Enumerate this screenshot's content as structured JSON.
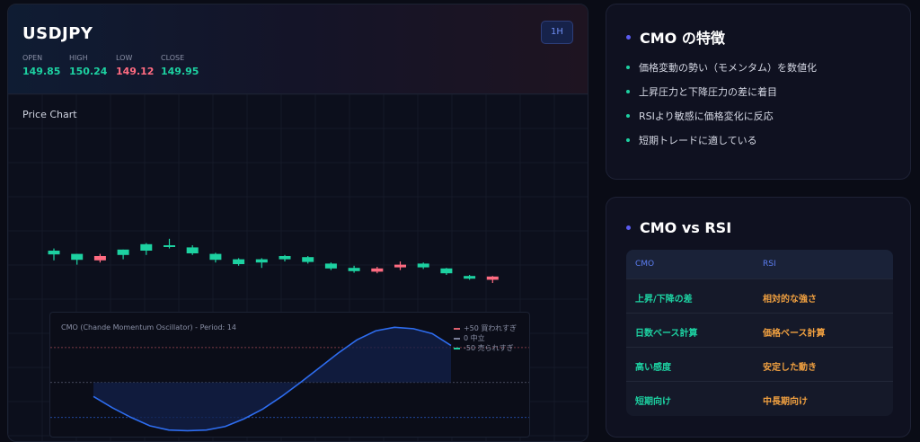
{
  "left": {
    "symbol": "USDJPY",
    "timeframe": "1H",
    "ohlc": [
      {
        "label": "OPEN",
        "value": "149.85",
        "color": "#1dd1a1"
      },
      {
        "label": "HIGH",
        "value": "150.24",
        "color": "#1dd1a1"
      },
      {
        "label": "LOW",
        "value": "149.12",
        "color": "#ff6b81"
      },
      {
        "label": "CLOSE",
        "value": "149.95",
        "color": "#1dd1a1"
      }
    ],
    "chart_title": "Price Chart",
    "cmo_title": "CMO (Chande Momentum Oscillator) - Period: 14",
    "legend": [
      {
        "label": "+50 買われすぎ",
        "color": "#e0606e"
      },
      {
        "label": "0 中立",
        "color": "#7a7f99"
      },
      {
        "label": "-50 売られすぎ",
        "color": "#1dd1a1"
      }
    ]
  },
  "features": {
    "title": "CMO の特徴",
    "items": [
      "価格変動の勢い（モメンタム）を数値化",
      "上昇圧力と下降圧力の差に着目",
      "RSIより敏感に価格変化に反応",
      "短期トレードに適している"
    ]
  },
  "compare": {
    "title": "CMO vs RSI",
    "headers": [
      "CMO",
      "RSI"
    ],
    "rows": [
      [
        "上昇/下降の差",
        "相対的な強さ"
      ],
      [
        "日数ベース計算",
        "価格ベース計算"
      ],
      [
        "高い感度",
        "安定した動き"
      ],
      [
        "短期向け",
        "中長期向け"
      ]
    ]
  },
  "colors": {
    "up": "#1dd1a1",
    "down": "#ff6b81",
    "cmo_line": "#2e6df0",
    "rsi_text": "#f0a040"
  },
  "chart_data": [
    {
      "type": "candlestick",
      "title": "Price Chart",
      "candles": [
        {
          "o": 0.515,
          "h": 0.57,
          "l": 0.46,
          "c": 0.55
        },
        {
          "o": 0.465,
          "h": 0.52,
          "l": 0.42,
          "c": 0.52
        },
        {
          "o": 0.5,
          "h": 0.52,
          "l": 0.44,
          "c": 0.46
        },
        {
          "o": 0.51,
          "h": 0.56,
          "l": 0.47,
          "c": 0.56
        },
        {
          "o": 0.55,
          "h": 0.62,
          "l": 0.51,
          "c": 0.61
        },
        {
          "o": 0.585,
          "h": 0.66,
          "l": 0.57,
          "c": 0.6
        },
        {
          "o": 0.525,
          "h": 0.6,
          "l": 0.51,
          "c": 0.58
        },
        {
          "o": 0.465,
          "h": 0.53,
          "l": 0.44,
          "c": 0.52
        },
        {
          "o": 0.425,
          "h": 0.48,
          "l": 0.41,
          "c": 0.47
        },
        {
          "o": 0.44,
          "h": 0.48,
          "l": 0.39,
          "c": 0.47
        },
        {
          "o": 0.47,
          "h": 0.51,
          "l": 0.45,
          "c": 0.5
        },
        {
          "o": 0.445,
          "h": 0.5,
          "l": 0.43,
          "c": 0.49
        },
        {
          "o": 0.385,
          "h": 0.44,
          "l": 0.37,
          "c": 0.43
        },
        {
          "o": 0.36,
          "h": 0.41,
          "l": 0.345,
          "c": 0.39
        },
        {
          "o": 0.385,
          "h": 0.4,
          "l": 0.34,
          "c": 0.355
        },
        {
          "o": 0.42,
          "h": 0.45,
          "l": 0.37,
          "c": 0.395
        },
        {
          "o": 0.395,
          "h": 0.44,
          "l": 0.38,
          "c": 0.43
        },
        {
          "o": 0.34,
          "h": 0.39,
          "l": 0.325,
          "c": 0.385
        },
        {
          "o": 0.29,
          "h": 0.325,
          "l": 0.28,
          "c": 0.315
        },
        {
          "o": 0.31,
          "h": 0.315,
          "l": 0.25,
          "c": 0.28
        }
      ]
    },
    {
      "type": "line",
      "title": "CMO (Chande Momentum Oscillator) - Period: 14",
      "levels": [
        50,
        0,
        -50
      ],
      "ylim": [
        -80,
        100
      ],
      "series": [
        {
          "values": [
            -20,
            -36,
            -50,
            -62,
            -68,
            -69,
            -68,
            -63,
            -52,
            -38,
            -20,
            0,
            21,
            42,
            61,
            74,
            79,
            77,
            70,
            53
          ]
        }
      ]
    }
  ]
}
